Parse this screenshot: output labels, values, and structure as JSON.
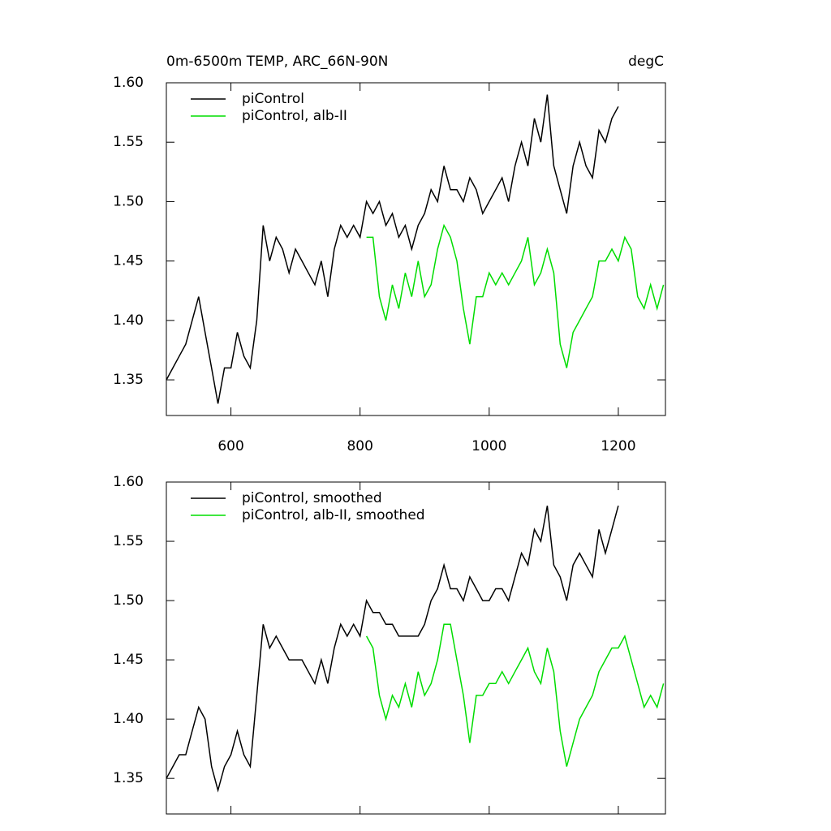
{
  "chart_data": [
    {
      "type": "line",
      "title": "0m-6500m TEMP, ARC_66N-90N",
      "units": "degC",
      "x": [
        500,
        510,
        520,
        530,
        540,
        550,
        560,
        570,
        580,
        590,
        600,
        610,
        620,
        630,
        640,
        650,
        660,
        670,
        680,
        690,
        700,
        710,
        720,
        730,
        740,
        750,
        760,
        770,
        780,
        790,
        800,
        810,
        820,
        830,
        840,
        850,
        860,
        870,
        880,
        890,
        900,
        910,
        920,
        930,
        940,
        950,
        960,
        970,
        980,
        990,
        1000,
        1010,
        1020,
        1030,
        1040,
        1050,
        1060,
        1070,
        1080,
        1090,
        1100,
        1110,
        1120,
        1130,
        1140,
        1150,
        1160,
        1170,
        1180,
        1190,
        1200,
        1210,
        1220,
        1230,
        1240,
        1250,
        1260,
        1270
      ],
      "series": [
        {
          "name": "piControl",
          "color": "#000000",
          "values": [
            1.35,
            1.36,
            1.37,
            1.38,
            1.4,
            1.42,
            1.39,
            1.36,
            1.33,
            1.36,
            1.36,
            1.39,
            1.37,
            1.36,
            1.4,
            1.48,
            1.45,
            1.47,
            1.46,
            1.44,
            1.46,
            1.45,
            1.44,
            1.43,
            1.45,
            1.42,
            1.46,
            1.48,
            1.47,
            1.48,
            1.47,
            1.5,
            1.49,
            1.5,
            1.48,
            1.49,
            1.47,
            1.48,
            1.46,
            1.48,
            1.49,
            1.51,
            1.5,
            1.53,
            1.51,
            1.51,
            1.5,
            1.52,
            1.51,
            1.49,
            1.5,
            1.51,
            1.52,
            1.5,
            1.53,
            1.55,
            1.53,
            1.57,
            1.55,
            1.59,
            1.53,
            1.51,
            1.49,
            1.53,
            1.55,
            1.53,
            1.52,
            1.56,
            1.55,
            1.57,
            1.58,
            null,
            null,
            null,
            null,
            null,
            null,
            null
          ]
        },
        {
          "name": "piControl, alb-II",
          "color": "#00dd00",
          "values": [
            null,
            null,
            null,
            null,
            null,
            null,
            null,
            null,
            null,
            null,
            null,
            null,
            null,
            null,
            null,
            null,
            null,
            null,
            null,
            null,
            null,
            null,
            null,
            null,
            null,
            null,
            null,
            null,
            null,
            null,
            null,
            1.47,
            1.47,
            1.42,
            1.4,
            1.43,
            1.41,
            1.44,
            1.42,
            1.45,
            1.42,
            1.43,
            1.46,
            1.48,
            1.47,
            1.45,
            1.41,
            1.38,
            1.42,
            1.42,
            1.44,
            1.43,
            1.44,
            1.43,
            1.44,
            1.45,
            1.47,
            1.43,
            1.44,
            1.46,
            1.44,
            1.38,
            1.36,
            1.39,
            1.4,
            1.41,
            1.42,
            1.45,
            1.45,
            1.46,
            1.45,
            1.47,
            1.46,
            1.42,
            1.41,
            1.43,
            1.41,
            1.43
          ]
        }
      ],
      "xlim": [
        500,
        1273
      ],
      "xticks": [
        600,
        800,
        1000,
        1200
      ],
      "xtick_labels": true,
      "ylim": [
        1.32,
        1.6
      ],
      "yticks": [
        {
          "value": 1.35,
          "label": "1.35"
        },
        {
          "value": 1.4,
          "label": "1.40"
        },
        1.45,
        {
          "value": 1.5,
          "label": "1.50"
        },
        1.55,
        {
          "value": 1.6,
          "label": "1.60"
        }
      ]
    },
    {
      "type": "line",
      "x": [
        500,
        510,
        520,
        530,
        540,
        550,
        560,
        570,
        580,
        590,
        600,
        610,
        620,
        630,
        640,
        650,
        660,
        670,
        680,
        690,
        700,
        710,
        720,
        730,
        740,
        750,
        760,
        770,
        780,
        790,
        800,
        810,
        820,
        830,
        840,
        850,
        860,
        870,
        880,
        890,
        900,
        910,
        920,
        930,
        940,
        950,
        960,
        970,
        980,
        990,
        1000,
        1010,
        1020,
        1030,
        1040,
        1050,
        1060,
        1070,
        1080,
        1090,
        1100,
        1110,
        1120,
        1130,
        1140,
        1150,
        1160,
        1170,
        1180,
        1190,
        1200,
        1210,
        1220,
        1230,
        1240,
        1250,
        1260,
        1270
      ],
      "series": [
        {
          "name": "piControl, smoothed",
          "color": "#000000",
          "values": [
            1.35,
            1.36,
            1.37,
            1.37,
            1.39,
            1.41,
            1.4,
            1.36,
            1.34,
            1.36,
            1.37,
            1.39,
            1.37,
            1.36,
            1.42,
            1.48,
            1.46,
            1.47,
            1.46,
            1.45,
            1.45,
            1.45,
            1.44,
            1.43,
            1.45,
            1.43,
            1.46,
            1.48,
            1.47,
            1.48,
            1.47,
            1.5,
            1.49,
            1.49,
            1.48,
            1.48,
            1.47,
            1.47,
            1.47,
            1.47,
            1.48,
            1.5,
            1.51,
            1.53,
            1.51,
            1.51,
            1.5,
            1.52,
            1.51,
            1.5,
            1.5,
            1.51,
            1.51,
            1.5,
            1.52,
            1.54,
            1.53,
            1.56,
            1.55,
            1.58,
            1.53,
            1.52,
            1.5,
            1.53,
            1.54,
            1.53,
            1.52,
            1.56,
            1.54,
            1.56,
            1.58,
            null,
            null,
            null,
            null,
            null,
            null,
            null
          ]
        },
        {
          "name": "piControl, alb-II, smoothed",
          "color": "#00dd00",
          "values": [
            null,
            null,
            null,
            null,
            null,
            null,
            null,
            null,
            null,
            null,
            null,
            null,
            null,
            null,
            null,
            null,
            null,
            null,
            null,
            null,
            null,
            null,
            null,
            null,
            null,
            null,
            null,
            null,
            null,
            null,
            null,
            1.47,
            1.46,
            1.42,
            1.4,
            1.42,
            1.41,
            1.43,
            1.41,
            1.44,
            1.42,
            1.43,
            1.45,
            1.48,
            1.48,
            1.45,
            1.42,
            1.38,
            1.42,
            1.42,
            1.43,
            1.43,
            1.44,
            1.43,
            1.44,
            1.45,
            1.46,
            1.44,
            1.43,
            1.46,
            1.44,
            1.39,
            1.36,
            1.38,
            1.4,
            1.41,
            1.42,
            1.44,
            1.45,
            1.46,
            1.46,
            1.47,
            1.45,
            1.43,
            1.41,
            1.42,
            1.41,
            1.43
          ]
        }
      ],
      "xlim": [
        500,
        1273
      ],
      "xticks": [
        600,
        800,
        1000,
        1200
      ],
      "xtick_labels": false,
      "ylim": [
        1.32,
        1.6
      ],
      "yticks": [
        {
          "value": 1.35,
          "label": "1.35"
        },
        {
          "value": 1.4,
          "label": "1.40"
        },
        1.45,
        {
          "value": 1.5,
          "label": "1.50"
        },
        1.55,
        {
          "value": 1.6,
          "label": "1.60"
        }
      ]
    }
  ]
}
